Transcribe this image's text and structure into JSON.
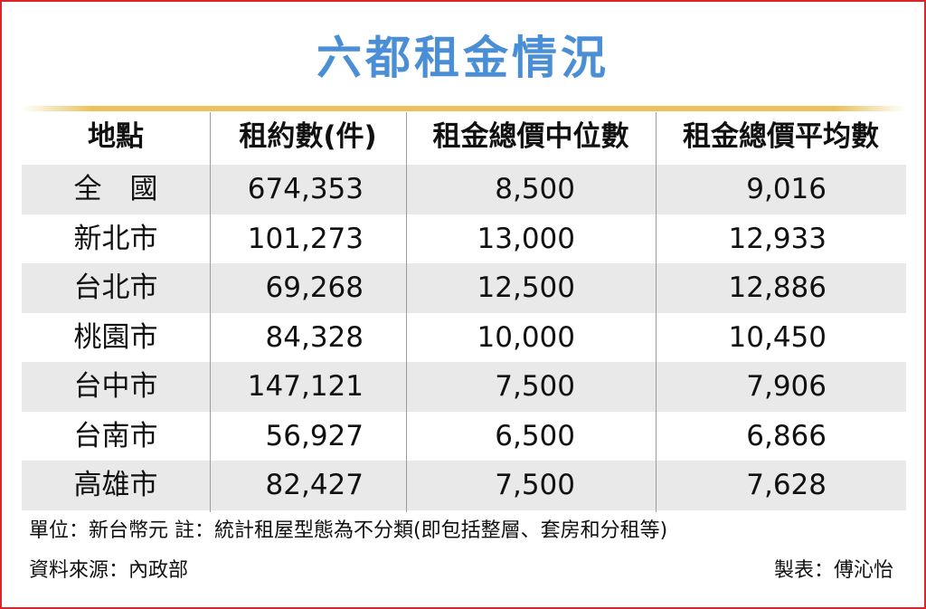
{
  "title": "六都租金情況",
  "chart_data": {
    "type": "table",
    "title": "六都租金情況",
    "columns": [
      "地點",
      "租約數(件)",
      "租金總價中位數",
      "租金總價平均數"
    ],
    "rows": [
      {
        "location": "全　國",
        "contracts": "674,353",
        "median": "8,500",
        "mean": "9,016"
      },
      {
        "location": "新北市",
        "contracts": "101,273",
        "median": "13,000",
        "mean": "12,933"
      },
      {
        "location": "台北市",
        "contracts": "69,268",
        "median": "12,500",
        "mean": "12,886"
      },
      {
        "location": "桃園市",
        "contracts": "84,328",
        "median": "10,000",
        "mean": "10,450"
      },
      {
        "location": "台中市",
        "contracts": "147,121",
        "median": "7,500",
        "mean": "7,906"
      },
      {
        "location": "台南市",
        "contracts": "56,927",
        "median": "6,500",
        "mean": "6,866"
      },
      {
        "location": "高雄市",
        "contracts": "82,427",
        "median": "7,500",
        "mean": "7,628"
      }
    ]
  },
  "footer": {
    "note": "單位：新台幣元 註：統計租屋型態為不分類(即包括整層、套房和分租等)",
    "source": "資料來源：內政部",
    "credit": "製表：傅沁怡"
  },
  "colors": {
    "title": "#4a8fd6",
    "border": "#d8262c",
    "rule": "#e8c25a",
    "row_shade": "#e9e9e9"
  }
}
